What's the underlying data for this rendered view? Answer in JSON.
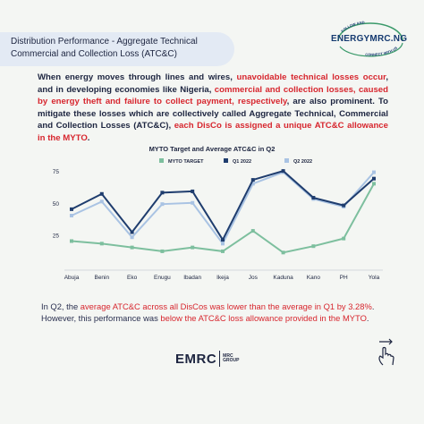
{
  "header": {
    "title_line1": "Distribution Performance - Aggregate Technical",
    "title_line2": "Commercial and Collection Loss (ATC&C)"
  },
  "brand": {
    "top_logo": "ENERGYMRC.NG",
    "ring_top": "FOLLOW AND",
    "ring_bottom": "CONNECT WITH US",
    "footer_logo": "EMRC",
    "footer_group_line1": "MRC",
    "footer_group_line2": "GROUP"
  },
  "intro": {
    "p1": "When energy moves through lines and wires, ",
    "r1": "unavoidable technical losses occur",
    "p2": ", and in developing economies like Nigeria, ",
    "r2": "commercial and collection losses, caused by energy theft and failure to collect payment, respectively",
    "p3": ", are also prominent. To mitigate these losses which are collectively called Aggregate Technical, Commercial and Collection Losses (ATC&C), ",
    "r3": "each DisCo is assigned a unique ATC&C allowance in the MYTO",
    "p4": "."
  },
  "outro": {
    "p1": "In Q2, the ",
    "r1": "average ATC&C across all DisCos was lower than the average in Q1 by 3.28%",
    "p2": ". However, this performance was ",
    "r2": "below the ATC&C loss allowance provided in the MYTO",
    "p3": "."
  },
  "colors": {
    "myto": "#7dbf9e",
    "q1": "#1f3d6e",
    "q2": "#a9c3e3",
    "red": "#d7262e",
    "navy": "#1d2540"
  },
  "chart_data": {
    "type": "line",
    "title": "MYTO Target and Average ATC&C in Q2",
    "categories": [
      "Abuja",
      "Benin",
      "Eko",
      "Enugu",
      "Ibadan",
      "Ikeja",
      "Jos",
      "Kaduna",
      "Kano",
      "PH",
      "Yola"
    ],
    "yticks": [
      25,
      50,
      75
    ],
    "ylim": [
      0,
      80
    ],
    "legend_position": "top",
    "grid": false,
    "series": [
      {
        "name": "MYTO TARGET",
        "color": "#7dbf9e",
        "values": [
          20,
          18,
          15,
          12,
          15,
          12,
          28,
          11,
          16,
          22,
          65
        ]
      },
      {
        "name": "Q1 2022",
        "color": "#1f3d6e",
        "values": [
          45,
          57,
          27,
          58,
          59,
          21,
          68,
          75,
          54,
          48,
          69
        ]
      },
      {
        "name": "Q2 2022",
        "color": "#a9c3e3",
        "values": [
          40,
          51,
          23,
          49,
          50,
          18,
          65,
          74,
          53,
          47,
          74
        ]
      }
    ]
  }
}
